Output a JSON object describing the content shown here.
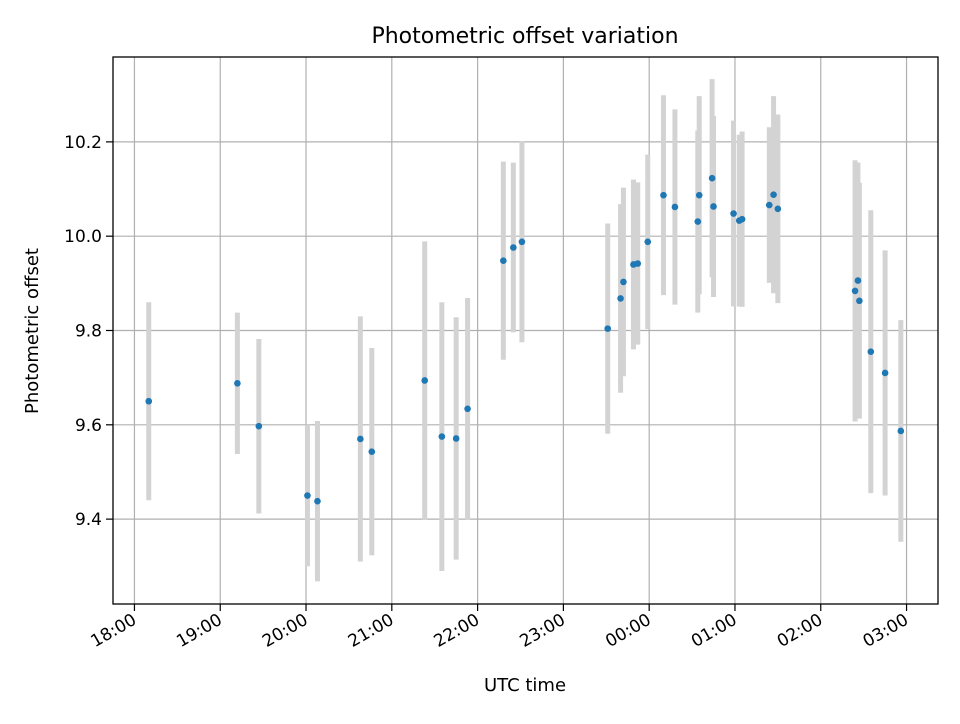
{
  "chart_data": {
    "type": "scatter",
    "title": "Photometric offset variation",
    "xlabel": "UTC time",
    "ylabel": "Photometric offset",
    "x_axis_type": "time",
    "x_start_date": "2020-01-01",
    "x_ticks": [
      "2020-01-01T18:00",
      "2020-01-01T19:00",
      "2020-01-01T20:00",
      "2020-01-01T21:00",
      "2020-01-01T22:00",
      "2020-01-01T23:00",
      "2020-01-02T00:00",
      "2020-01-02T01:00",
      "2020-01-02T02:00",
      "2020-01-02T03:00"
    ],
    "x_tick_labels": [
      "18:00",
      "19:00",
      "20:00",
      "21:00",
      "22:00",
      "23:00",
      "00:00",
      "01:00",
      "02:00",
      "03:00"
    ],
    "xlim": [
      "2020-01-01T17:45",
      "2020-01-02T03:22"
    ],
    "ylim": [
      9.22,
      10.38
    ],
    "y_ticks": [
      9.4,
      9.6,
      9.8,
      10.0,
      10.2
    ],
    "y_tick_labels": [
      "9.4",
      "9.6",
      "9.8",
      "10.0",
      "10.2"
    ],
    "grid": true,
    "colors": {
      "point": "#1f77b4",
      "errorbar": "#d3d3d3",
      "grid": "#b0b0b0"
    },
    "points": [
      {
        "x": "2020-01-01T18:10",
        "y": 9.65,
        "err": 0.21
      },
      {
        "x": "2020-01-01T19:12",
        "y": 9.688,
        "err": 0.15
      },
      {
        "x": "2020-01-01T19:27",
        "y": 9.597,
        "err": 0.185
      },
      {
        "x": "2020-01-01T20:01",
        "y": 9.45,
        "err": 0.15
      },
      {
        "x": "2020-01-01T20:08",
        "y": 9.438,
        "err": 0.17
      },
      {
        "x": "2020-01-01T20:38",
        "y": 9.57,
        "err": 0.26
      },
      {
        "x": "2020-01-01T20:46",
        "y": 9.543,
        "err": 0.22
      },
      {
        "x": "2020-01-01T21:23",
        "y": 9.694,
        "err": 0.295
      },
      {
        "x": "2020-01-01T21:35",
        "y": 9.575,
        "err": 0.285
      },
      {
        "x": "2020-01-01T21:45",
        "y": 9.571,
        "err": 0.257
      },
      {
        "x": "2020-01-01T21:53",
        "y": 9.634,
        "err": 0.235
      },
      {
        "x": "2020-01-01T22:18",
        "y": 9.948,
        "err": 0.21
      },
      {
        "x": "2020-01-01T22:25",
        "y": 9.976,
        "err": 0.18
      },
      {
        "x": "2020-01-01T22:31",
        "y": 9.988,
        "err": 0.213
      },
      {
        "x": "2020-01-01T23:31",
        "y": 9.804,
        "err": 0.223
      },
      {
        "x": "2020-01-01T23:40",
        "y": 9.868,
        "err": 0.2
      },
      {
        "x": "2020-01-01T23:42",
        "y": 9.903,
        "err": 0.2
      },
      {
        "x": "2020-01-01T23:49",
        "y": 9.94,
        "err": 0.18
      },
      {
        "x": "2020-01-01T23:52",
        "y": 9.942,
        "err": 0.172
      },
      {
        "x": "2020-01-01T23:59",
        "y": 9.988,
        "err": 0.185
      },
      {
        "x": "2020-01-02T00:10",
        "y": 10.087,
        "err": 0.212
      },
      {
        "x": "2020-01-02T00:18",
        "y": 10.062,
        "err": 0.207
      },
      {
        "x": "2020-01-02T00:34",
        "y": 10.031,
        "err": 0.193
      },
      {
        "x": "2020-01-02T00:35",
        "y": 10.087,
        "err": 0.21
      },
      {
        "x": "2020-01-02T00:44",
        "y": 10.123,
        "err": 0.21
      },
      {
        "x": "2020-01-02T00:45",
        "y": 10.063,
        "err": 0.192
      },
      {
        "x": "2020-01-02T00:59",
        "y": 10.048,
        "err": 0.197
      },
      {
        "x": "2020-01-02T01:03",
        "y": 10.033,
        "err": 0.182
      },
      {
        "x": "2020-01-02T01:05",
        "y": 10.036,
        "err": 0.186
      },
      {
        "x": "2020-01-02T01:24",
        "y": 10.066,
        "err": 0.165
      },
      {
        "x": "2020-01-02T01:27",
        "y": 10.088,
        "err": 0.209
      },
      {
        "x": "2020-01-02T01:30",
        "y": 10.058,
        "err": 0.2
      },
      {
        "x": "2020-01-02T02:24",
        "y": 9.884,
        "err": 0.277
      },
      {
        "x": "2020-01-02T02:26",
        "y": 9.906,
        "err": 0.25
      },
      {
        "x": "2020-01-02T02:27",
        "y": 9.863,
        "err": 0.25
      },
      {
        "x": "2020-01-02T02:35",
        "y": 9.755,
        "err": 0.3
      },
      {
        "x": "2020-01-02T02:45",
        "y": 9.71,
        "err": 0.26
      },
      {
        "x": "2020-01-02T02:56",
        "y": 9.587,
        "err": 0.235
      }
    ]
  }
}
